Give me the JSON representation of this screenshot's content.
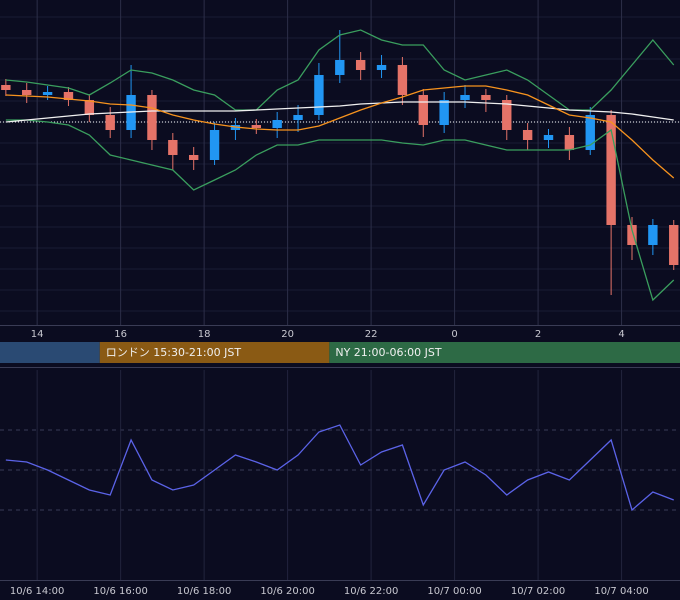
{
  "chart_data": [
    {
      "type": "candlestick",
      "x": [
        13.25,
        13.75,
        14.25,
        14.75,
        15.25,
        15.75,
        16.25,
        16.75,
        17.25,
        17.75,
        18.25,
        18.75,
        19.25,
        19.75,
        20.25,
        20.75,
        21.25,
        21.75,
        22.25,
        22.75,
        23.25,
        23.75,
        24.25,
        24.75,
        25.25,
        25.75,
        26.25,
        26.75,
        27.25,
        27.75,
        28.25,
        28.75,
        29.25
      ],
      "open": [
        240,
        235,
        230,
        233,
        225,
        210,
        195,
        230,
        185,
        170,
        165,
        195,
        200,
        197,
        205,
        210,
        250,
        265,
        255,
        260,
        230,
        200,
        225,
        230,
        225,
        195,
        185,
        190,
        175,
        210,
        100,
        80,
        100
      ],
      "high": [
        246,
        242,
        239,
        238,
        231,
        218,
        260,
        235,
        192,
        178,
        203,
        207,
        206,
        213,
        220,
        262,
        295,
        273,
        270,
        268,
        236,
        233,
        240,
        236,
        230,
        202,
        196,
        198,
        218,
        215,
        108,
        106,
        105
      ],
      "low": [
        229,
        222,
        225,
        219,
        203,
        187,
        187,
        175,
        155,
        155,
        160,
        185,
        191,
        187,
        193,
        205,
        242,
        245,
        247,
        220,
        188,
        192,
        217,
        213,
        185,
        175,
        177,
        165,
        170,
        30,
        65,
        70,
        55
      ],
      "close": [
        235,
        230,
        233,
        225,
        210,
        195,
        230,
        185,
        170,
        165,
        195,
        200,
        197,
        205,
        210,
        250,
        265,
        255,
        260,
        230,
        200,
        225,
        230,
        225,
        195,
        185,
        190,
        175,
        210,
        100,
        80,
        100,
        60
      ],
      "up_color": "#2196f3",
      "down_color": "#e57368",
      "overlays": [
        {
          "color": "#3a9e5e",
          "values": [
            245,
            243,
            240,
            237,
            230,
            242,
            255,
            252,
            245,
            235,
            230,
            215,
            215,
            235,
            245,
            275,
            290,
            295,
            285,
            280,
            280,
            255,
            245,
            250,
            255,
            245,
            230,
            215,
            215,
            235,
            260,
            285,
            260
          ]
        },
        {
          "color": "#3a9e5e",
          "values": [
            205,
            205,
            203,
            200,
            190,
            170,
            165,
            160,
            155,
            135,
            145,
            155,
            170,
            180,
            180,
            185,
            185,
            185,
            185,
            182,
            180,
            185,
            185,
            180,
            175,
            175,
            175,
            175,
            180,
            195,
            95,
            25,
            45
          ]
        },
        {
          "color": "#f0f0f0",
          "values": [
            203,
            205,
            207,
            209,
            211,
            212,
            213,
            214,
            214,
            214,
            214,
            214,
            215,
            216,
            217,
            218,
            219,
            221,
            222,
            223,
            223,
            223,
            223,
            222,
            221,
            219,
            217,
            215,
            214,
            213,
            211,
            208,
            205
          ]
        },
        {
          "color": "#f7931e",
          "values": [
            230,
            229,
            228,
            226,
            224,
            221,
            220,
            217,
            210,
            205,
            201,
            198,
            196,
            195,
            195,
            199,
            207,
            215,
            222,
            228,
            235,
            237,
            239,
            239,
            235,
            230,
            220,
            210,
            207,
            203,
            185,
            165,
            147
          ]
        }
      ],
      "level": 203,
      "xlim": [
        13.11,
        29.4
      ],
      "ylim": [
        0,
        325
      ],
      "xticks": [
        14,
        16,
        18,
        20,
        22,
        {
          "value": 24,
          "label": "0"
        },
        {
          "value": 26,
          "label": "2"
        },
        {
          "value": 28,
          "label": "4"
        }
      ],
      "grid": true,
      "sessions": [
        {
          "end": 15.5,
          "color": "#2a4a73"
        },
        {
          "label": "ロンドン 15:30-21:00 JST",
          "start": 15.5,
          "end": 21,
          "color": "#8a5a14"
        },
        {
          "label": "NY 21:00-06:00 JST",
          "start": 21,
          "end": 30,
          "color": "#2d6a45"
        }
      ]
    },
    {
      "type": "line",
      "color": "#5b63e8",
      "x": [
        13.25,
        13.75,
        14.25,
        14.75,
        15.25,
        15.75,
        16.25,
        16.75,
        17.25,
        17.75,
        18.25,
        18.75,
        19.25,
        19.75,
        20.25,
        20.75,
        21.25,
        21.75,
        22.25,
        22.75,
        23.25,
        23.75,
        24.25,
        24.75,
        25.25,
        25.75,
        26.25,
        26.75,
        27.25,
        27.75,
        28.25,
        28.75,
        29.25
      ],
      "values": [
        55,
        54,
        50,
        45,
        40,
        37.5,
        65,
        45,
        40,
        42.5,
        50,
        57.5,
        54,
        50,
        57.5,
        69,
        72.5,
        52.5,
        59,
        62.5,
        32.5,
        50,
        54,
        47.5,
        37.5,
        45,
        49,
        45,
        55,
        65,
        30,
        39,
        35
      ],
      "xlim": [
        13.11,
        29.4
      ],
      "ylim": [
        0,
        100
      ],
      "guides": [
        30,
        50,
        70
      ],
      "xticks": [
        {
          "value": 14,
          "label": "10/6 14:00"
        },
        {
          "value": 16,
          "label": "10/6 16:00"
        },
        {
          "value": 18,
          "label": "10/6 18:00"
        },
        {
          "value": 20,
          "label": "10/6 20:00"
        },
        {
          "value": 22,
          "label": "10/6 22:00"
        },
        {
          "value": 24,
          "label": "10/7 00:00"
        },
        {
          "value": 26,
          "label": "10/7 02:00"
        },
        {
          "value": 28,
          "label": "10/7 04:00"
        }
      ]
    }
  ]
}
